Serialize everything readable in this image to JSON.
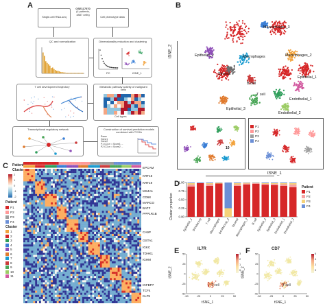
{
  "panels": {
    "A": "A",
    "B": "B",
    "C": "C",
    "D": "D",
    "E": "E",
    "F": "F"
  },
  "panelA": {
    "box_scrna": "Single-cell RNA-seq",
    "dataset_id": "GSE117570",
    "dataset_detail": "(4 patients,",
    "dataset_cells": "4887 cells)",
    "box_phenotype": "Cell phenotype data",
    "box_qc": "QC and normalization",
    "box_dimred": "Dimensionality reduction and clustering",
    "pca_y": "PC",
    "pca_axis": "PC",
    "tsne_axis": "tSNE_1",
    "tsne_y": "tSNE_2",
    "box_tcell": "T cell development trajectory",
    "box_metabolic": "Metabolic pathway activity of malignant cells",
    "metabolic_x": "Cell types",
    "box_tf": "Transcriptional regulatory network",
    "box_survival": "Construction of survival prediction models combined with TCGA",
    "formula_rows": [
      "Rsme",
      "Gene1",
      "Gene2",
      "P1 CO-m = Score1 ...",
      "P2 CO-m = Score2 ..."
    ]
  },
  "panelB": {
    "y_axis": "tSNE_2",
    "x_axis": "tSNE_1",
    "clusters": [
      {
        "label": "Macrophages_3",
        "color": "#3a7fd6"
      },
      {
        "label": "Epithelial_2",
        "color": "#8f4fb8"
      },
      {
        "label": "Macrophages",
        "color": "#1a9bd0"
      },
      {
        "label": "Macrophages_2",
        "color": "#f2a23b"
      },
      {
        "label": "Stromal",
        "color": "#6c6c6c"
      },
      {
        "label": "B cell",
        "color": "#cc3b3b"
      },
      {
        "label": "Epithelial_1",
        "color": "#d25aa0"
      },
      {
        "label": "Endothelial_1",
        "color": "#2f9e5b"
      },
      {
        "label": "T cell",
        "color": "#4aa657"
      },
      {
        "label": "Epithelial_3",
        "color": "#e07a2d"
      },
      {
        "label": "Endothelial_2",
        "color": "#9ccc65"
      }
    ],
    "patient_legend": [
      "P1",
      "P2",
      "P3",
      "P4"
    ],
    "patient_colors": [
      "#d62728",
      "#ff9a9a",
      "#9e9e9e",
      "#6b8fd6"
    ],
    "subcluster_number": "10"
  },
  "panelC": {
    "legend_title_patient": "Patient",
    "legend_title_cluster": "Cluster",
    "scale_ticks": [
      "2",
      "1",
      "0",
      "-1",
      "-2"
    ],
    "patient_items": [
      "P1",
      "P2",
      "P3",
      "P4"
    ],
    "cluster_items": [
      "1",
      "2",
      "3",
      "4",
      "5",
      "6",
      "7",
      "8",
      "9",
      "10",
      "11"
    ],
    "patient_title_2": "Patient",
    "cluster_title_2": "Cluster",
    "genes_top": [
      "EPCAM",
      "KRT18",
      "KRT19",
      "MS4A1",
      "CD68",
      "MARCO",
      "BATF",
      "PPP1R1B"
    ],
    "genes_mid": [
      "CA9P",
      "GSTA1",
      "IGKC",
      "TDHK1",
      "IGHM"
    ],
    "genes_bot": [
      "IGFBP7",
      "TCF4",
      "KLF5"
    ]
  },
  "panelD": {
    "ylabel": "Cluster proportion",
    "yticks": [
      "1.00",
      "0.75",
      "0.50",
      "0.25",
      "0.00"
    ],
    "legend_title": "Patient",
    "legend_items": [
      "P1",
      "P2",
      "P3",
      "P4"
    ],
    "categories": [
      "Epithelial_1",
      "DC/Macrop",
      "T cell",
      "Macrophages",
      "DC/Macrop_2",
      "Stromal",
      "Macrophages_2",
      "B cell",
      "Epithelial_2",
      "Epithelial_3",
      "Endothelial_1",
      "Endothelial_2"
    ]
  },
  "chart_data": {
    "type": "bar",
    "ylabel": "Cluster proportion",
    "ylim": [
      0,
      1
    ],
    "categories": [
      "Epithelial_1",
      "DC/Macrop",
      "T cell",
      "Macrophages",
      "DC/Macrop_2",
      "Stromal",
      "Macrophages_2",
      "B cell",
      "Epithelial_2",
      "Epithelial_3",
      "Endothelial_1",
      "Endothelial_2"
    ],
    "series": [
      {
        "name": "P1",
        "color": "#d62728",
        "values": [
          0.88,
          0.98,
          0.9,
          0.97,
          0.0,
          0.9,
          0.94,
          0.96,
          0.93,
          0.92,
          0.9,
          0.86
        ]
      },
      {
        "name": "P2",
        "color": "#f5a3a3",
        "values": [
          0.06,
          0.0,
          0.05,
          0.0,
          0.0,
          0.04,
          0.03,
          0.02,
          0.03,
          0.04,
          0.05,
          0.08
        ]
      },
      {
        "name": "P3",
        "color": "#f5d27a",
        "values": [
          0.04,
          0.0,
          0.03,
          0.02,
          0.25,
          0.04,
          0.02,
          0.01,
          0.02,
          0.02,
          0.03,
          0.04
        ]
      },
      {
        "name": "P4",
        "color": "#6b8fd6",
        "values": [
          0.02,
          0.02,
          0.02,
          0.01,
          0.75,
          0.02,
          0.01,
          0.01,
          0.02,
          0.02,
          0.02,
          0.02
        ]
      }
    ]
  },
  "panelE": {
    "title": "IL7R",
    "xlabel": "tSNE_1",
    "ylabel": "tSNE_2",
    "annotation": "T cell",
    "xticks": [
      "-50",
      "-25",
      "0",
      "25",
      "50"
    ],
    "yticks": [
      "50",
      "25",
      "0",
      "-25",
      "-50"
    ],
    "scale_ticks": [
      "3",
      "2",
      "1",
      "0"
    ]
  },
  "panelF": {
    "title": "CD7",
    "xlabel": "tSNE_1",
    "ylabel": "tSNE_2",
    "annotation": "T cell",
    "xticks": [
      "-50",
      "-25",
      "0",
      "25",
      "50"
    ],
    "yticks": [
      "50",
      "25",
      "0",
      "-25",
      "-50"
    ],
    "scale_ticks": [
      "6",
      "4",
      "2",
      "0"
    ]
  }
}
